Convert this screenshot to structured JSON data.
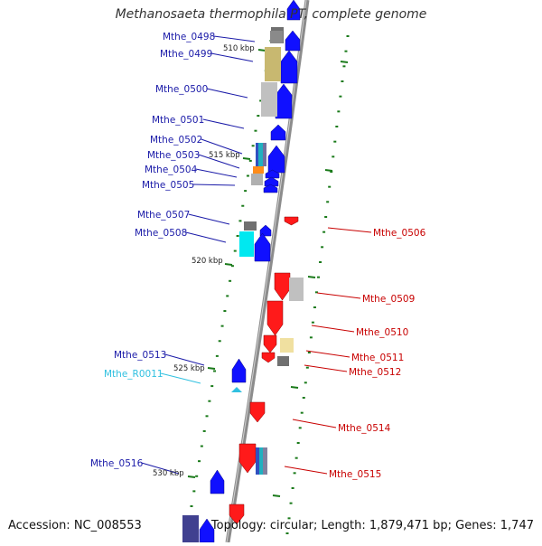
{
  "title": "Methanosaeta thermophila PT, complete genome",
  "footer": {
    "accession": "Accession: NC_008553",
    "summary": "Topology: circular; Length: 1,879,471 bp; Genes: 1,747"
  },
  "colors": {
    "forward_label": "#1a1aa8",
    "reverse_label": "#c80000",
    "rna_label": "#30c0e0",
    "forward_gene": "#1010ff",
    "reverse_gene": "#ff1a1a",
    "backbone": "#8c8c8c",
    "ticks": "#1a7a1a"
  },
  "scale_labels": [
    "510 kbp",
    "515 kbp",
    "520 kbp",
    "525 kbp",
    "530 kbp"
  ],
  "gene_labels": [
    {
      "text": "Mthe_0498",
      "strand": "forward"
    },
    {
      "text": "Mthe_0499",
      "strand": "forward"
    },
    {
      "text": "Mthe_0500",
      "strand": "forward"
    },
    {
      "text": "Mthe_0501",
      "strand": "forward"
    },
    {
      "text": "Mthe_0502",
      "strand": "forward"
    },
    {
      "text": "Mthe_0503",
      "strand": "forward"
    },
    {
      "text": "Mthe_0504",
      "strand": "forward"
    },
    {
      "text": "Mthe_0505",
      "strand": "forward"
    },
    {
      "text": "Mthe_0507",
      "strand": "forward"
    },
    {
      "text": "Mthe_0508",
      "strand": "forward"
    },
    {
      "text": "Mthe_0513",
      "strand": "forward"
    },
    {
      "text": "Mthe_R0011",
      "strand": "rna"
    },
    {
      "text": "Mthe_0516",
      "strand": "forward"
    },
    {
      "text": "Mthe_0506",
      "strand": "reverse"
    },
    {
      "text": "Mthe_0509",
      "strand": "reverse"
    },
    {
      "text": "Mthe_0510",
      "strand": "reverse"
    },
    {
      "text": "Mthe_0511",
      "strand": "reverse"
    },
    {
      "text": "Mthe_0512",
      "strand": "reverse"
    },
    {
      "text": "Mthe_0514",
      "strand": "reverse"
    },
    {
      "text": "Mthe_0515",
      "strand": "reverse"
    }
  ]
}
